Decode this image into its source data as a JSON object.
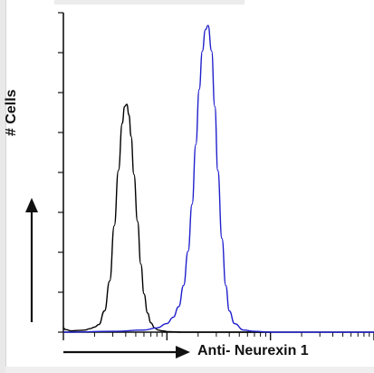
{
  "chart_data": {
    "type": "line",
    "title": "",
    "xlabel": "Anti- Neurexin 1",
    "ylabel": "# Cells",
    "xscale": "log",
    "grid": false,
    "legend": "none",
    "series": [
      {
        "color": "#000000",
        "x": [
          1,
          1.05,
          1.2,
          1.4,
          1.6,
          1.8,
          2.0,
          2.2,
          2.5,
          2.8,
          3.1,
          3.4,
          3.7,
          3.9,
          4.1,
          4.3,
          4.5,
          4.8,
          5.2,
          5.6,
          6.0,
          6.5,
          7.0,
          7.6,
          8.2,
          9.0,
          10.5,
          14,
          30,
          100
        ],
        "y": [
          0.1,
          0.06,
          0.03,
          0.04,
          0.05,
          0.08,
          0.12,
          0.18,
          0.5,
          1.2,
          2.5,
          3.8,
          4.9,
          5.3,
          5.35,
          5.1,
          4.6,
          3.7,
          2.6,
          1.6,
          0.9,
          0.45,
          0.22,
          0.1,
          0.05,
          0.03,
          0.01,
          0,
          0,
          0
        ]
      },
      {
        "color": "#1f1fcc",
        "x": [
          1,
          3,
          6,
          8,
          10,
          11.5,
          13,
          14.5,
          16,
          17.5,
          19,
          20.5,
          22,
          23.5,
          25,
          27,
          29,
          31,
          34,
          37,
          40,
          45,
          55,
          70,
          100,
          300,
          1000
        ],
        "y": [
          0,
          0.02,
          0.05,
          0.1,
          0.2,
          0.35,
          0.6,
          1.1,
          1.9,
          3.0,
          4.4,
          5.7,
          6.6,
          7.1,
          7.2,
          6.6,
          5.3,
          3.8,
          2.2,
          1.1,
          0.5,
          0.2,
          0.05,
          0.02,
          0,
          0,
          0
        ]
      }
    ],
    "xlim": [
      1,
      1000
    ],
    "ylim": [
      0,
      7.5
    ],
    "y_major_ticks": 8,
    "x_decades": 3
  },
  "colors": {
    "axis": "#111111",
    "control": "#000000",
    "sample": "#1f1fcc"
  }
}
